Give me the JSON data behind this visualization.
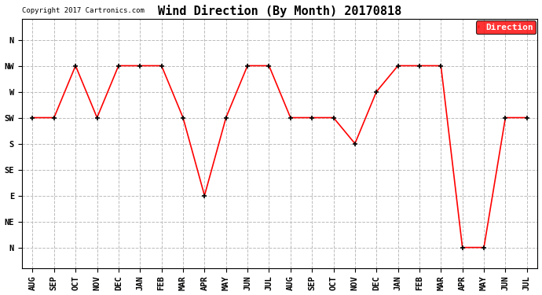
{
  "title": "Wind Direction (By Month) 20170818",
  "copyright": "Copyright 2017 Cartronics.com",
  "x_labels": [
    "AUG",
    "SEP",
    "OCT",
    "NOV",
    "DEC",
    "JAN",
    "FEB",
    "MAR",
    "APR",
    "MAY",
    "JUN",
    "JUL",
    "AUG",
    "SEP",
    "OCT",
    "NOV",
    "DEC",
    "JAN",
    "FEB",
    "MAR",
    "APR",
    "MAY",
    "JUN",
    "JUL"
  ],
  "y_labels": [
    "N",
    "NW",
    "W",
    "SW",
    "S",
    "SE",
    "E",
    "NE",
    "N"
  ],
  "y_tick_positions": [
    8,
    7,
    6,
    5,
    4,
    3,
    2,
    1,
    0
  ],
  "series": {
    "Direction": {
      "color": "#ff0000",
      "data": [
        5,
        5,
        7,
        5,
        7,
        7,
        7,
        5,
        2,
        5,
        7,
        7,
        5,
        5,
        5,
        4,
        6,
        7,
        7,
        7,
        0,
        0,
        5,
        5
      ]
    }
  },
  "legend_label": "Direction",
  "legend_bg": "#ff0000",
  "legend_text_color": "#ffffff",
  "background_color": "#ffffff",
  "grid_color": "#bbbbbb",
  "title_fontsize": 11,
  "tick_fontsize": 7.5
}
